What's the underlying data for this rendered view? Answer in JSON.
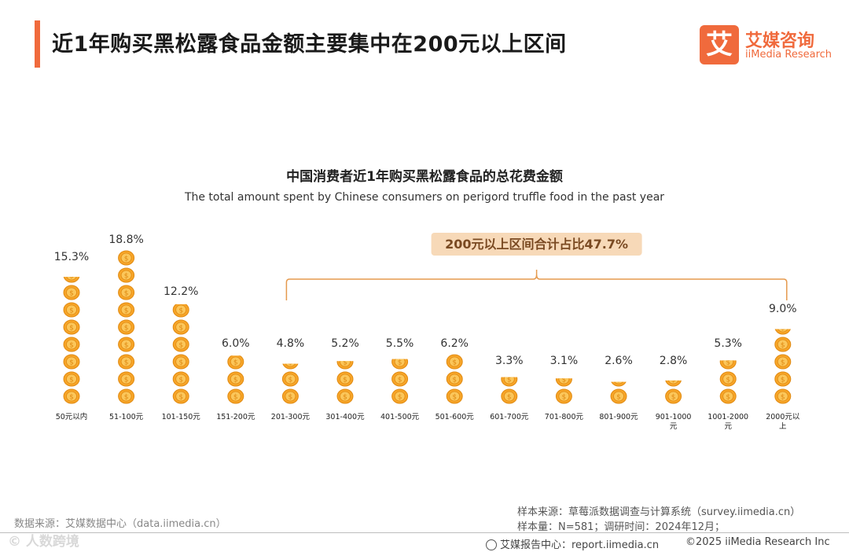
{
  "header": {
    "title": "近1年购买黑松露食品金额主要集中在200元以上区间",
    "logo_mark": "艾",
    "logo_cn": "艾媒咨询",
    "logo_en": "iiMedia Research"
  },
  "chart_data": {
    "type": "bar",
    "title": "中国消费者近1年购买黑松露食品的总花费金额",
    "subtitle": "The total amount spent by Chinese consumers on perigord truffle food in the past year",
    "categories": [
      "50元以内",
      "51-100元",
      "101-150元",
      "151-200元",
      "201-300元",
      "301-400元",
      "401-500元",
      "501-600元",
      "601-700元",
      "701-800元",
      "801-900元",
      "901-1000元",
      "1001-2000元",
      "2000元以上"
    ],
    "category_lines": [
      [
        "50元以内"
      ],
      [
        "51-100元"
      ],
      [
        "101-150元"
      ],
      [
        "151-200元"
      ],
      [
        "201-300元"
      ],
      [
        "301-400元"
      ],
      [
        "401-500元"
      ],
      [
        "501-600元"
      ],
      [
        "601-700元"
      ],
      [
        "701-800元"
      ],
      [
        "801-900元"
      ],
      [
        "901-1000",
        "元"
      ],
      [
        "1001-2000",
        "元"
      ],
      [
        "2000元以",
        "上"
      ]
    ],
    "values": [
      15.3,
      18.8,
      12.2,
      6.0,
      4.8,
      5.2,
      5.5,
      6.2,
      3.3,
      3.1,
      2.6,
      2.8,
      5.3,
      9.0
    ],
    "value_labels": [
      "15.3%",
      "18.8%",
      "12.2%",
      "6.0%",
      "4.8%",
      "5.2%",
      "5.5%",
      "6.2%",
      "3.3%",
      "3.1%",
      "2.6%",
      "2.8%",
      "5.3%",
      "9.0%"
    ],
    "unit": "%",
    "annotation": {
      "text": "200元以上区间合计占比47.7%",
      "from_category": "201-300元",
      "to_category": "2000元以上"
    },
    "coin_symbol": "$",
    "colors": {
      "coin": "#f7a528",
      "coin_inner": "#fbc65a",
      "coin_edge": "#e08a12",
      "bracket": "#e59a4e",
      "callout_bg": "#f7d9b8",
      "callout_text": "#7a4a22"
    }
  },
  "footer": {
    "data_source": "数据来源：艾媒数据中心（data.iimedia.cn）",
    "sample_source": "样本来源：草莓派数据调查与计算系统（survey.iimedia.cn）",
    "sample_size": "样本量：N=581；调研时间：2024年12月；",
    "report_center": "艾媒报告中心：report.iimedia.cn",
    "copyright": "©2025  iiMedia Research  Inc",
    "watermark": "© 人数跨境"
  }
}
